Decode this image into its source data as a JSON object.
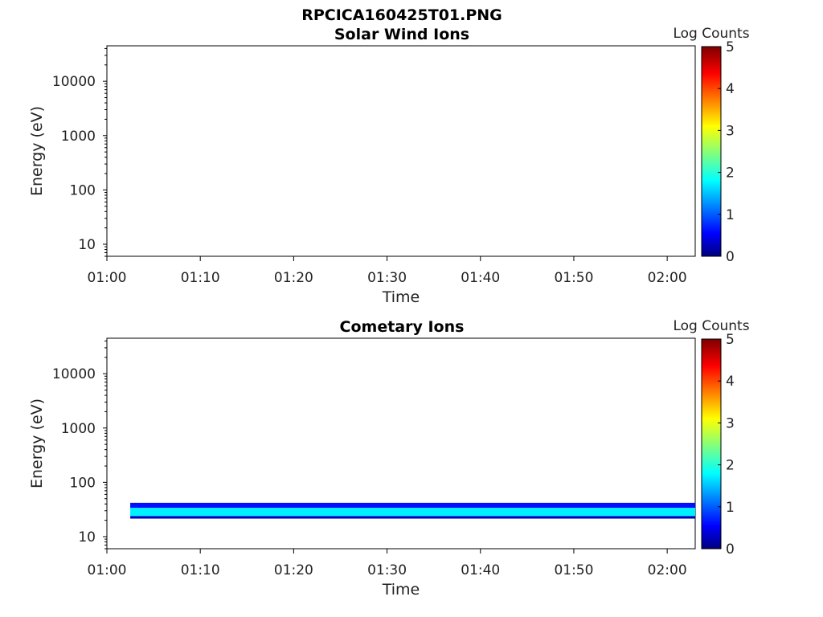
{
  "figure": {
    "title": "RPCICA160425T01.PNG"
  },
  "chart_data": [
    {
      "type": "heatmap",
      "title": "Solar Wind Ions",
      "xlabel": "Time",
      "ylabel": "Energy (eV)",
      "x_ticks": [
        "01:00",
        "01:10",
        "01:20",
        "01:30",
        "01:40",
        "01:50",
        "02:00"
      ],
      "x_range": [
        "01:00",
        "02:03"
      ],
      "y_scale": "log",
      "y_ticks": [
        10,
        100,
        1000,
        10000
      ],
      "y_range": [
        6,
        45000
      ],
      "colorbar": {
        "label": "Log Counts",
        "range": [
          0,
          5
        ],
        "ticks": [
          0,
          1,
          2,
          3,
          4,
          5
        ],
        "colormap": "jet"
      },
      "bands": []
    },
    {
      "type": "heatmap",
      "title": "Cometary Ions",
      "xlabel": "Time",
      "ylabel": "Energy (eV)",
      "x_ticks": [
        "01:00",
        "01:10",
        "01:20",
        "01:30",
        "01:40",
        "01:50",
        "02:00"
      ],
      "x_range": [
        "01:00",
        "02:03"
      ],
      "y_scale": "log",
      "y_ticks": [
        10,
        100,
        1000,
        10000
      ],
      "y_range": [
        6,
        45000
      ],
      "colorbar": {
        "label": "Log Counts",
        "range": [
          0,
          5
        ],
        "ticks": [
          0,
          1,
          2,
          3,
          4,
          5
        ],
        "colormap": "jet"
      },
      "bands": [
        {
          "t_start": "01:02.5",
          "t_end": "02:03",
          "e_low": 21.5,
          "e_high": 24,
          "log_counts": 0.3
        },
        {
          "t_start": "01:02.5",
          "t_end": "02:03",
          "e_low": 24,
          "e_high": 34,
          "log_counts": 1.8
        },
        {
          "t_start": "01:02.5",
          "t_end": "02:03",
          "e_low": 34,
          "e_high": 42,
          "log_counts": 0.7
        }
      ]
    }
  ]
}
